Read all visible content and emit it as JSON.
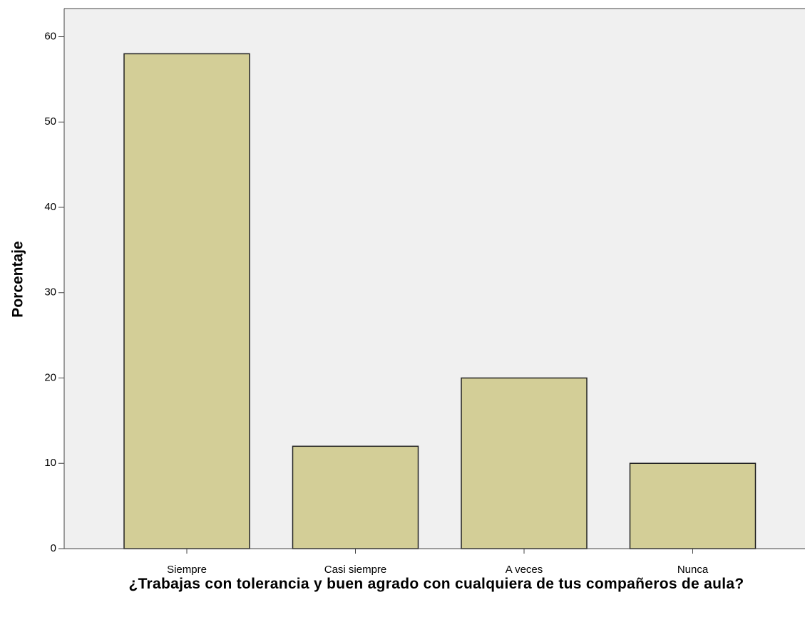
{
  "chart_data": {
    "type": "bar",
    "y_label": "Porcentaje",
    "x_label": "¿Trabajas con tolerancia y buen agrado con cualquiera de tus compañeros de aula?",
    "categories": [
      "Siempre",
      "Casi siempre",
      "A veces",
      "Nunca"
    ],
    "values": [
      58,
      12,
      20,
      10
    ],
    "color": "#d3ce97",
    "ylim": [
      0,
      63.3
    ],
    "yticks": [
      0,
      10,
      20,
      30,
      40,
      50,
      60
    ],
    "grid": false
  }
}
